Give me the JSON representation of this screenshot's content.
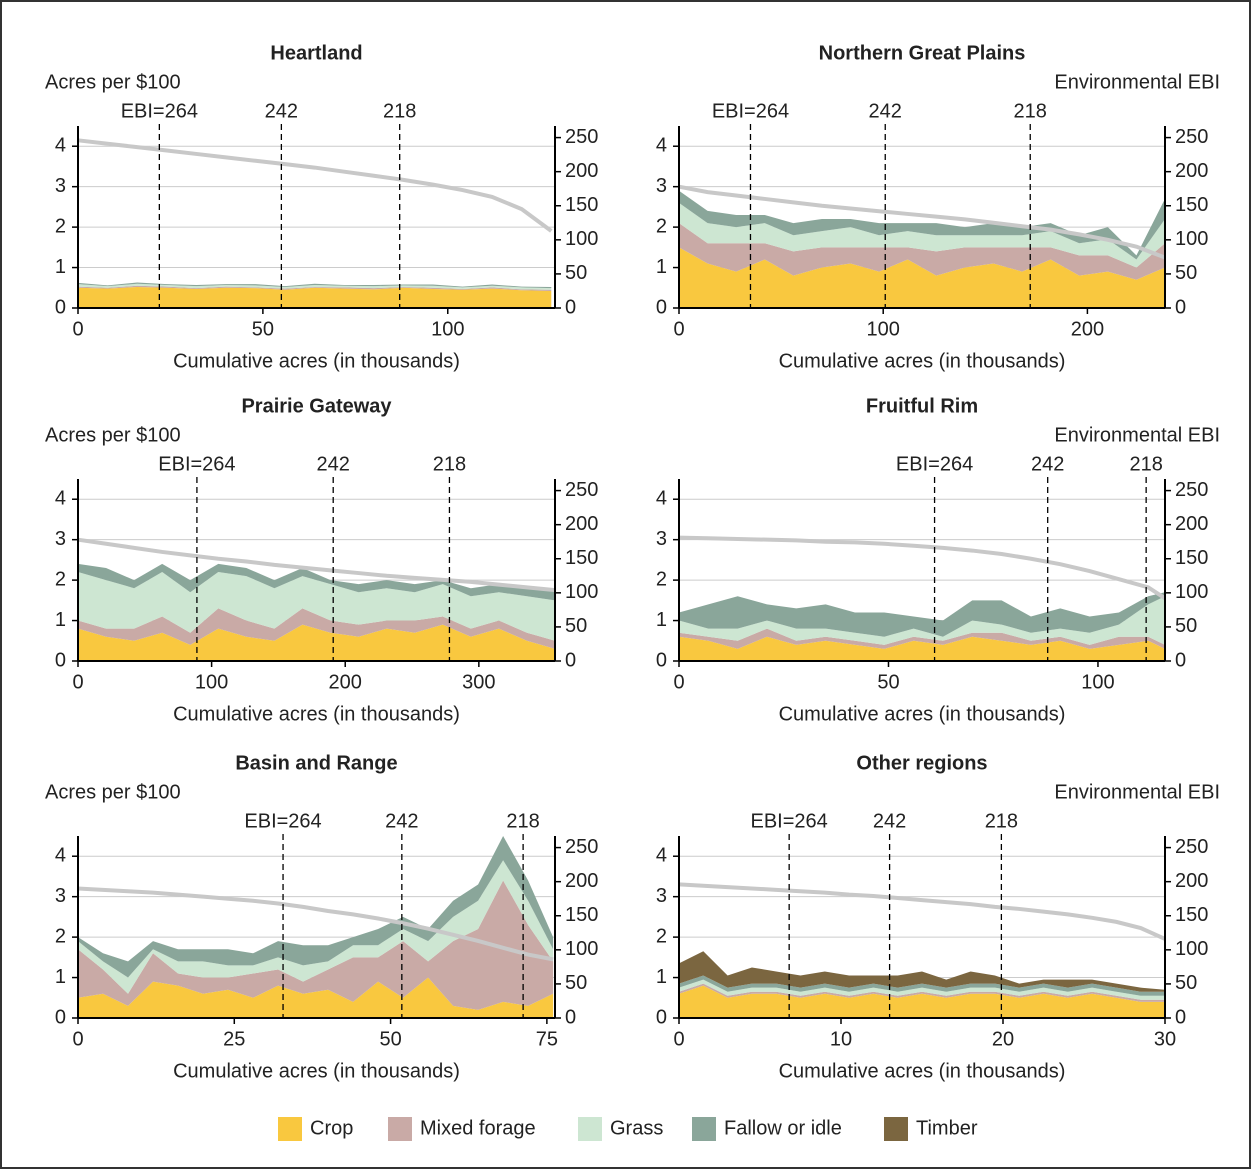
{
  "chart_data": [
    {
      "type": "area",
      "title": "Heartland",
      "ylabel": "Acres per $100",
      "xlabel": "Cumulative acres (in thousands)",
      "x": [
        0,
        8,
        16,
        24,
        32,
        40,
        48,
        56,
        64,
        72,
        80,
        88,
        96,
        104,
        112,
        120,
        128
      ],
      "xlim": [
        0,
        129
      ],
      "xticks": [
        0,
        50,
        100
      ],
      "ylim": [
        0,
        4.5
      ],
      "yticks": [
        0,
        1,
        2,
        3,
        4
      ],
      "y2lim": [
        0,
        267
      ],
      "y2ticks": [
        0,
        50,
        100,
        150,
        200,
        250
      ],
      "grid": true,
      "series": [
        {
          "name": "Crop",
          "color": "#f9c83f",
          "values": [
            0.5,
            0.48,
            0.52,
            0.5,
            0.47,
            0.5,
            0.49,
            0.45,
            0.5,
            0.48,
            0.46,
            0.5,
            0.47,
            0.45,
            0.48,
            0.44,
            0.42
          ]
        },
        {
          "name": "Mixed forage",
          "color": "#c9aaa6",
          "values": [
            0.03,
            0.02,
            0.03,
            0.03,
            0.02,
            0.03,
            0.02,
            0.03,
            0.02,
            0.03,
            0.03,
            0.02,
            0.03,
            0.02,
            0.03,
            0.02,
            0.03
          ]
        },
        {
          "name": "Grass",
          "color": "#cde6d2",
          "values": [
            0.06,
            0.04,
            0.05,
            0.04,
            0.05,
            0.04,
            0.05,
            0.04,
            0.05,
            0.04,
            0.05,
            0.04,
            0.05,
            0.04,
            0.04,
            0.05,
            0.04
          ]
        },
        {
          "name": "Fallow or idle",
          "color": "#8aa69a",
          "values": [
            0.03,
            0.02,
            0.03,
            0.02,
            0.03,
            0.02,
            0.03,
            0.02,
            0.03,
            0.02,
            0.03,
            0.02,
            0.03,
            0.02,
            0.03,
            0.02,
            0.03
          ]
        }
      ],
      "ebi": {
        "color": "#c8c8c8",
        "axis": "y2",
        "values": [
          246,
          241,
          236,
          231,
          226,
          221,
          216,
          211,
          206,
          200,
          194,
          188,
          181,
          173,
          163,
          145,
          113
        ]
      },
      "vlines": [
        {
          "x": 22,
          "label": "EBI=264"
        },
        {
          "x": 55,
          "label": "242"
        },
        {
          "x": 87,
          "label": "218"
        }
      ]
    },
    {
      "type": "area",
      "title": "Northern Great Plains",
      "y2label": "Environmental EBI",
      "xlabel": "Cumulative acres (in thousands)",
      "x": [
        0,
        14,
        28,
        42,
        56,
        70,
        84,
        98,
        112,
        126,
        140,
        154,
        168,
        182,
        196,
        210,
        224,
        238
      ],
      "xlim": [
        0,
        238
      ],
      "xticks": [
        0,
        100,
        200
      ],
      "ylim": [
        0,
        4.5
      ],
      "yticks": [
        0,
        1,
        2,
        3,
        4
      ],
      "y2lim": [
        0,
        267
      ],
      "y2ticks": [
        0,
        50,
        100,
        150,
        200,
        250
      ],
      "grid": true,
      "series": [
        {
          "name": "Crop",
          "color": "#f9c83f",
          "values": [
            1.5,
            1.1,
            0.9,
            1.2,
            0.8,
            1.0,
            1.1,
            0.9,
            1.2,
            0.8,
            1.0,
            1.1,
            0.9,
            1.2,
            0.8,
            0.9,
            0.7,
            1.0
          ]
        },
        {
          "name": "Mixed forage",
          "color": "#c9aaa6",
          "values": [
            0.6,
            0.5,
            0.7,
            0.4,
            0.6,
            0.5,
            0.4,
            0.6,
            0.3,
            0.6,
            0.5,
            0.4,
            0.6,
            0.3,
            0.5,
            0.4,
            0.3,
            0.6
          ]
        },
        {
          "name": "Grass",
          "color": "#cde6d2",
          "values": [
            0.5,
            0.5,
            0.4,
            0.5,
            0.4,
            0.4,
            0.5,
            0.3,
            0.4,
            0.4,
            0.3,
            0.3,
            0.3,
            0.4,
            0.3,
            0.4,
            0.2,
            0.6
          ]
        },
        {
          "name": "Fallow or idle",
          "color": "#8aa69a",
          "values": [
            0.3,
            0.3,
            0.3,
            0.2,
            0.3,
            0.3,
            0.2,
            0.3,
            0.2,
            0.3,
            0.2,
            0.3,
            0.2,
            0.2,
            0.2,
            0.3,
            0.1,
            0.5
          ]
        }
      ],
      "ebi": {
        "color": "#c8c8c8",
        "axis": "y2",
        "values": [
          178,
          170,
          165,
          160,
          155,
          150,
          146,
          142,
          138,
          134,
          130,
          125,
          120,
          115,
          108,
          100,
          90,
          74
        ]
      },
      "vlines": [
        {
          "x": 35,
          "label": "EBI=264"
        },
        {
          "x": 101,
          "label": "242"
        },
        {
          "x": 172,
          "label": "218"
        }
      ]
    },
    {
      "type": "area",
      "title": "Prairie Gateway",
      "ylabel": "Acres per $100",
      "xlabel": "Cumulative acres (in thousands)",
      "x": [
        0,
        21,
        42,
        63,
        84,
        105,
        126,
        147,
        168,
        189,
        210,
        231,
        252,
        273,
        294,
        315,
        336,
        357
      ],
      "xlim": [
        0,
        357
      ],
      "xticks": [
        0,
        100,
        200,
        300
      ],
      "ylim": [
        0,
        4.5
      ],
      "yticks": [
        0,
        1,
        2,
        3,
        4
      ],
      "y2lim": [
        0,
        267
      ],
      "y2ticks": [
        0,
        50,
        100,
        150,
        200,
        250
      ],
      "grid": true,
      "series": [
        {
          "name": "Crop",
          "color": "#f9c83f",
          "values": [
            0.8,
            0.6,
            0.5,
            0.7,
            0.4,
            0.8,
            0.6,
            0.5,
            0.9,
            0.7,
            0.6,
            0.8,
            0.7,
            0.9,
            0.6,
            0.8,
            0.5,
            0.3
          ]
        },
        {
          "name": "Mixed forage",
          "color": "#c9aaa6",
          "values": [
            0.2,
            0.2,
            0.3,
            0.4,
            0.3,
            0.5,
            0.4,
            0.3,
            0.4,
            0.3,
            0.3,
            0.2,
            0.3,
            0.2,
            0.2,
            0.2,
            0.2,
            0.2
          ]
        },
        {
          "name": "Grass",
          "color": "#cde6d2",
          "values": [
            1.2,
            1.2,
            1.0,
            1.1,
            1.0,
            0.9,
            1.1,
            1.0,
            0.8,
            0.9,
            0.8,
            0.8,
            0.7,
            0.8,
            0.8,
            0.7,
            0.9,
            1.0
          ]
        },
        {
          "name": "Fallow or idle",
          "color": "#8aa69a",
          "values": [
            0.2,
            0.3,
            0.2,
            0.2,
            0.3,
            0.2,
            0.2,
            0.2,
            0.2,
            0.1,
            0.2,
            0.2,
            0.2,
            0.1,
            0.2,
            0.2,
            0.2,
            0.3
          ]
        }
      ],
      "ebi": {
        "color": "#c8c8c8",
        "axis": "y2",
        "values": [
          178,
          172,
          166,
          160,
          155,
          150,
          146,
          141,
          137,
          133,
          129,
          125,
          122,
          119,
          116,
          112,
          108,
          104
        ]
      },
      "vlines": [
        {
          "x": 89,
          "label": "EBI=264"
        },
        {
          "x": 191,
          "label": "242"
        },
        {
          "x": 278,
          "label": "218"
        }
      ]
    },
    {
      "type": "area",
      "title": "Fruitful Rim",
      "y2label": "Environmental EBI",
      "xlabel": "Cumulative acres (in thousands)",
      "x": [
        0,
        7,
        14,
        21,
        28,
        35,
        42,
        49,
        56,
        63,
        70,
        77,
        84,
        91,
        98,
        105,
        112,
        116
      ],
      "xlim": [
        0,
        116
      ],
      "xticks": [
        0,
        50,
        100
      ],
      "ylim": [
        0,
        4.5
      ],
      "yticks": [
        0,
        1,
        2,
        3,
        4
      ],
      "y2lim": [
        0,
        267
      ],
      "y2ticks": [
        0,
        50,
        100,
        150,
        200,
        250
      ],
      "grid": true,
      "series": [
        {
          "name": "Crop",
          "color": "#f9c83f",
          "values": [
            0.6,
            0.5,
            0.3,
            0.6,
            0.4,
            0.5,
            0.4,
            0.3,
            0.5,
            0.4,
            0.6,
            0.5,
            0.4,
            0.5,
            0.3,
            0.4,
            0.5,
            0.3
          ]
        },
        {
          "name": "Mixed forage",
          "color": "#c9aaa6",
          "values": [
            0.1,
            0.1,
            0.2,
            0.2,
            0.1,
            0.1,
            0.1,
            0.1,
            0.1,
            0.1,
            0.1,
            0.2,
            0.1,
            0.1,
            0.1,
            0.2,
            0.1,
            0.1
          ]
        },
        {
          "name": "Grass",
          "color": "#cde6d2",
          "values": [
            0.3,
            0.2,
            0.3,
            0.2,
            0.3,
            0.2,
            0.2,
            0.2,
            0.2,
            0.1,
            0.3,
            0.2,
            0.2,
            0.2,
            0.3,
            0.3,
            0.8,
            1.2
          ]
        },
        {
          "name": "Fallow or idle",
          "color": "#8aa69a",
          "values": [
            0.2,
            0.6,
            0.8,
            0.4,
            0.5,
            0.6,
            0.5,
            0.6,
            0.3,
            0.4,
            0.5,
            0.6,
            0.4,
            0.5,
            0.4,
            0.3,
            0.2,
            0.1
          ]
        }
      ],
      "ebi": {
        "color": "#c8c8c8",
        "axis": "y2",
        "values": [
          181,
          180,
          179,
          178,
          177,
          175,
          174,
          172,
          169,
          166,
          162,
          157,
          150,
          142,
          132,
          120,
          108,
          92
        ]
      },
      "vlines": [
        {
          "x": 61,
          "label": "EBI=264"
        },
        {
          "x": 88,
          "label": "242"
        },
        {
          "x": 111.5,
          "label": "218"
        }
      ]
    },
    {
      "type": "area",
      "title": "Basin and Range",
      "ylabel": "Acres per $100",
      "xlabel": "Cumulative acres (in thousands)",
      "x": [
        0,
        4,
        8,
        12,
        16,
        20,
        24,
        28,
        32,
        36,
        40,
        44,
        48,
        52,
        56,
        60,
        64,
        68,
        72,
        76
      ],
      "xlim": [
        0,
        76.3
      ],
      "xticks": [
        0,
        25,
        50,
        75
      ],
      "ylim": [
        0,
        4.5
      ],
      "yticks": [
        0,
        1,
        2,
        3,
        4
      ],
      "y2lim": [
        0,
        267
      ],
      "y2ticks": [
        0,
        50,
        100,
        150,
        200,
        250
      ],
      "grid": true,
      "series": [
        {
          "name": "Crop",
          "color": "#f9c83f",
          "values": [
            0.5,
            0.6,
            0.3,
            0.9,
            0.8,
            0.6,
            0.7,
            0.5,
            0.8,
            0.6,
            0.7,
            0.4,
            0.9,
            0.5,
            1.0,
            0.3,
            0.2,
            0.4,
            0.3,
            0.6
          ]
        },
        {
          "name": "Mixed forage",
          "color": "#c9aaa6",
          "values": [
            1.2,
            0.6,
            0.3,
            0.7,
            0.3,
            0.4,
            0.3,
            0.6,
            0.4,
            0.3,
            0.5,
            1.1,
            0.6,
            1.4,
            0.4,
            1.6,
            2.0,
            3.0,
            2.0,
            0.8
          ]
        },
        {
          "name": "Grass",
          "color": "#cde6d2",
          "values": [
            0.2,
            0.2,
            0.4,
            0.1,
            0.3,
            0.4,
            0.3,
            0.2,
            0.3,
            0.4,
            0.2,
            0.3,
            0.3,
            0.3,
            0.5,
            0.6,
            0.7,
            0.5,
            0.6,
            0.3
          ]
        },
        {
          "name": "Fallow or idle",
          "color": "#8aa69a",
          "values": [
            0.1,
            0.2,
            0.4,
            0.2,
            0.3,
            0.3,
            0.4,
            0.3,
            0.4,
            0.5,
            0.4,
            0.2,
            0.4,
            0.3,
            0.3,
            0.4,
            0.4,
            0.6,
            0.5,
            0.3
          ]
        }
      ],
      "ebi": {
        "color": "#c8c8c8",
        "axis": "y2",
        "values": [
          190,
          188,
          186,
          184,
          181,
          178,
          175,
          172,
          168,
          163,
          157,
          152,
          146,
          139,
          131,
          122,
          113,
          103,
          93,
          86
        ]
      },
      "vlines": [
        {
          "x": 32.8,
          "label": "EBI=264"
        },
        {
          "x": 51.8,
          "label": "242"
        },
        {
          "x": 71.2,
          "label": "218"
        }
      ]
    },
    {
      "type": "area",
      "title": "Other regions",
      "y2label": "Environmental EBI",
      "xlabel": "Cumulative acres (in thousands)",
      "x": [
        0,
        1.5,
        3,
        4.5,
        6,
        7.5,
        9,
        10.5,
        12,
        13.5,
        15,
        16.5,
        18,
        19.5,
        21,
        22.5,
        24,
        25.5,
        27,
        28.5,
        30
      ],
      "xlim": [
        0,
        30
      ],
      "xticks": [
        0,
        10,
        20,
        30
      ],
      "ylim": [
        0,
        4.5
      ],
      "yticks": [
        0,
        1,
        2,
        3,
        4
      ],
      "y2lim": [
        0,
        267
      ],
      "y2ticks": [
        0,
        50,
        100,
        150,
        200,
        250
      ],
      "grid": true,
      "series": [
        {
          "name": "Crop",
          "color": "#f9c83f",
          "values": [
            0.6,
            0.8,
            0.5,
            0.6,
            0.6,
            0.5,
            0.6,
            0.5,
            0.6,
            0.5,
            0.6,
            0.5,
            0.6,
            0.6,
            0.5,
            0.6,
            0.5,
            0.6,
            0.5,
            0.4,
            0.4
          ]
        },
        {
          "name": "Mixed forage",
          "color": "#c9aaa6",
          "values": [
            0.05,
            0.05,
            0.05,
            0.05,
            0.05,
            0.05,
            0.05,
            0.05,
            0.05,
            0.05,
            0.05,
            0.05,
            0.05,
            0.05,
            0.05,
            0.05,
            0.05,
            0.05,
            0.05,
            0.05,
            0.05
          ]
        },
        {
          "name": "Grass",
          "color": "#cde6d2",
          "values": [
            0.1,
            0.1,
            0.1,
            0.1,
            0.1,
            0.1,
            0.1,
            0.1,
            0.1,
            0.1,
            0.1,
            0.1,
            0.1,
            0.1,
            0.1,
            0.1,
            0.1,
            0.1,
            0.1,
            0.1,
            0.1
          ]
        },
        {
          "name": "Fallow or idle",
          "color": "#8aa69a",
          "values": [
            0.1,
            0.1,
            0.1,
            0.1,
            0.1,
            0.1,
            0.1,
            0.1,
            0.1,
            0.1,
            0.1,
            0.1,
            0.1,
            0.1,
            0.1,
            0.1,
            0.1,
            0.1,
            0.1,
            0.1,
            0.1
          ]
        },
        {
          "name": "Timber",
          "color": "#7b6640",
          "values": [
            0.5,
            0.6,
            0.3,
            0.4,
            0.3,
            0.3,
            0.3,
            0.3,
            0.2,
            0.3,
            0.3,
            0.2,
            0.3,
            0.2,
            0.1,
            0.1,
            0.2,
            0.1,
            0.1,
            0.1,
            0.05
          ]
        }
      ],
      "ebi": {
        "color": "#c8c8c8",
        "axis": "y2",
        "values": [
          196,
          194,
          192,
          190,
          188,
          186,
          184,
          181,
          179,
          176,
          173,
          170,
          167,
          163,
          160,
          156,
          152,
          147,
          141,
          132,
          116
        ]
      },
      "vlines": [
        {
          "x": 6.8,
          "label": "EBI=264"
        },
        {
          "x": 13,
          "label": "242"
        },
        {
          "x": 19.9,
          "label": "218"
        }
      ]
    }
  ]
}
